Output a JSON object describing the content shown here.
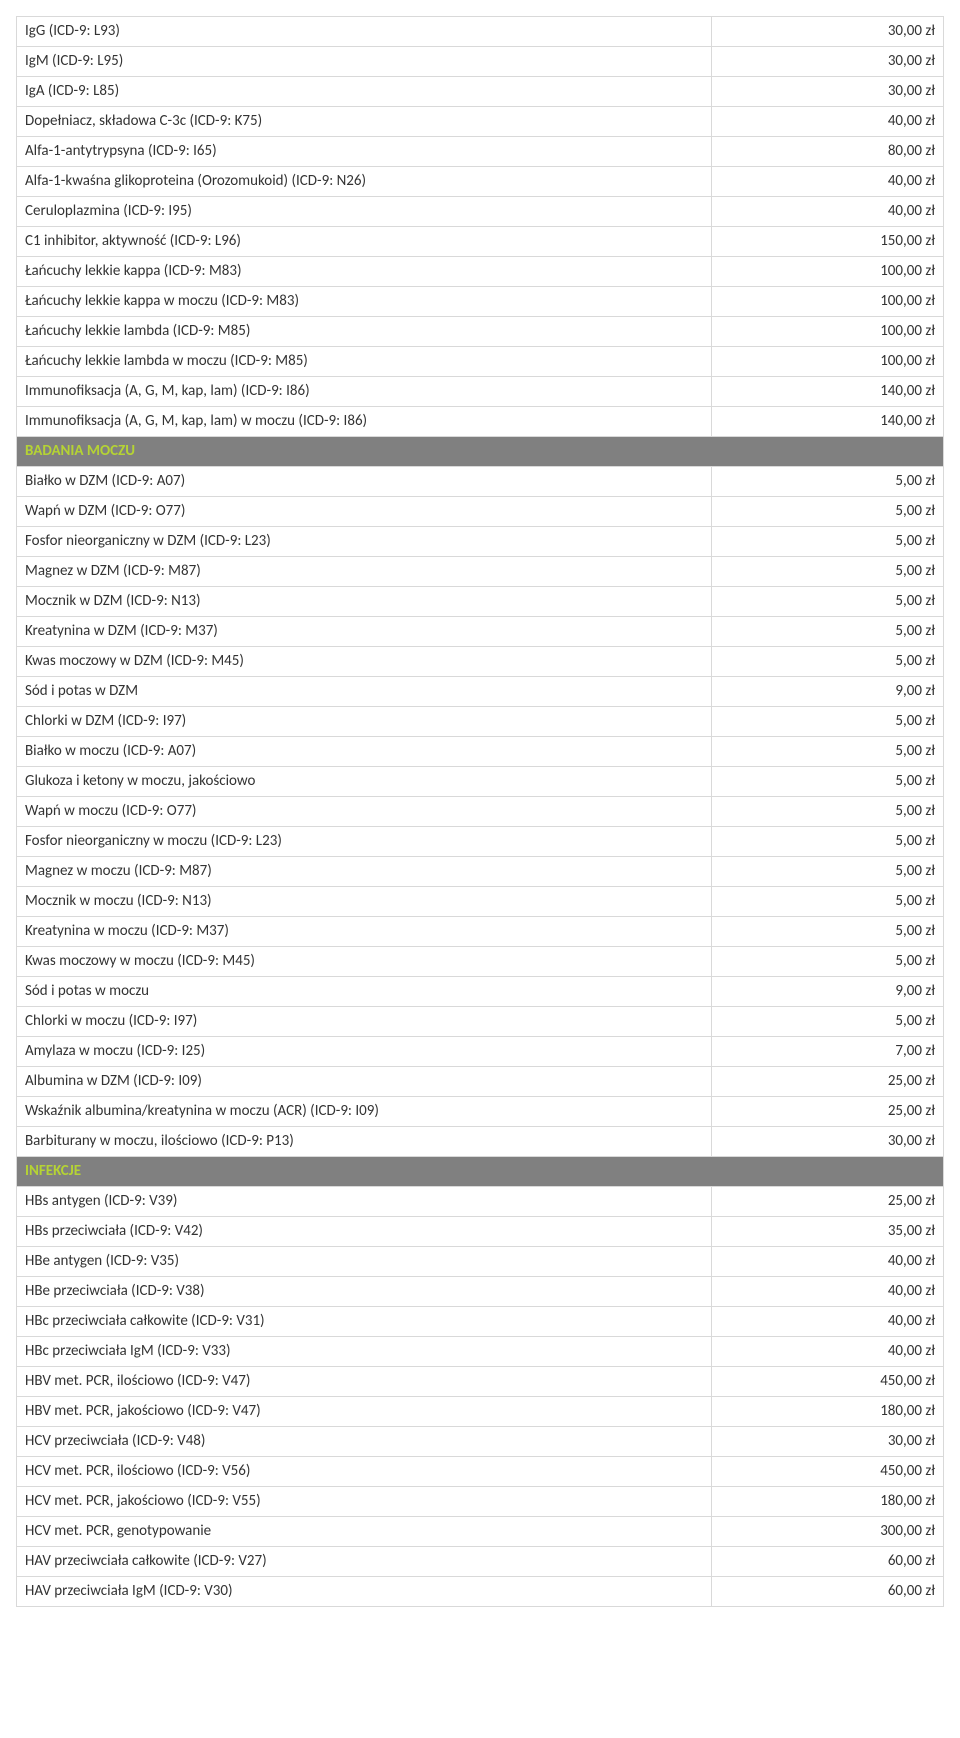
{
  "colors": {
    "border": "#d9d9d9",
    "section_bg": "#808080",
    "section_text": "#b5d334",
    "text": "#333333"
  },
  "columns": [
    "name",
    "price"
  ],
  "col_widths": [
    "75%",
    "25%"
  ],
  "rows": [
    {
      "type": "item",
      "name": "IgG (ICD-9: L93)",
      "price": "30,00 zł"
    },
    {
      "type": "item",
      "name": "IgM (ICD-9: L95)",
      "price": "30,00 zł"
    },
    {
      "type": "item",
      "name": "IgA (ICD-9: L85)",
      "price": "30,00 zł"
    },
    {
      "type": "item",
      "name": "Dopełniacz, składowa C-3c (ICD-9: K75)",
      "price": "40,00 zł"
    },
    {
      "type": "item",
      "name": "Alfa-1-antytrypsyna (ICD-9: I65)",
      "price": "80,00 zł"
    },
    {
      "type": "item",
      "name": "Alfa-1-kwaśna glikoproteina (Orozomukoid) (ICD-9: N26)",
      "price": "40,00 zł"
    },
    {
      "type": "item",
      "name": "Ceruloplazmina (ICD-9: I95)",
      "price": "40,00 zł"
    },
    {
      "type": "item",
      "name": "C1 inhibitor, aktywność (ICD-9: L96)",
      "price": "150,00 zł"
    },
    {
      "type": "item",
      "name": "Łańcuchy lekkie kappa (ICD-9: M83)",
      "price": "100,00 zł"
    },
    {
      "type": "item",
      "name": "Łańcuchy lekkie kappa w moczu (ICD-9: M83)",
      "price": "100,00 zł"
    },
    {
      "type": "item",
      "name": "Łańcuchy lekkie lambda (ICD-9: M85)",
      "price": "100,00 zł"
    },
    {
      "type": "item",
      "name": "Łańcuchy lekkie lambda w moczu (ICD-9: M85)",
      "price": "100,00 zł"
    },
    {
      "type": "item",
      "name": "Immunofiksacja (A, G, M, kap, lam) (ICD-9: I86)",
      "price": "140,00 zł"
    },
    {
      "type": "item",
      "name": "Immunofiksacja (A, G, M, kap, lam) w moczu (ICD-9: I86)",
      "price": "140,00 zł"
    },
    {
      "type": "section",
      "name": "BADANIA MOCZU"
    },
    {
      "type": "item",
      "name": "Białko w DZM (ICD-9: A07)",
      "price": "5,00 zł"
    },
    {
      "type": "item",
      "name": "Wapń w DZM (ICD-9: O77)",
      "price": "5,00 zł"
    },
    {
      "type": "item",
      "name": "Fosfor nieorganiczny w DZM (ICD-9: L23)",
      "price": "5,00 zł"
    },
    {
      "type": "item",
      "name": "Magnez w DZM (ICD-9: M87)",
      "price": "5,00 zł"
    },
    {
      "type": "item",
      "name": "Mocznik w DZM (ICD-9: N13)",
      "price": "5,00 zł"
    },
    {
      "type": "item",
      "name": "Kreatynina w DZM (ICD-9: M37)",
      "price": "5,00 zł"
    },
    {
      "type": "item",
      "name": "Kwas moczowy  w DZM (ICD-9: M45)",
      "price": "5,00 zł"
    },
    {
      "type": "item",
      "name": "Sód i potas w DZM",
      "price": "9,00 zł"
    },
    {
      "type": "item",
      "name": "Chlorki  w DZM (ICD-9: I97)",
      "price": "5,00 zł"
    },
    {
      "type": "item",
      "name": "Białko w moczu (ICD-9: A07)",
      "price": "5,00 zł"
    },
    {
      "type": "item",
      "name": "Glukoza i ketony w moczu, jakościowo",
      "price": "5,00 zł"
    },
    {
      "type": "item",
      "name": "Wapń w moczu (ICD-9: O77)",
      "price": "5,00 zł"
    },
    {
      "type": "item",
      "name": "Fosfor nieorganiczny w moczu (ICD-9: L23)",
      "price": "5,00 zł"
    },
    {
      "type": "item",
      "name": "Magnez w moczu (ICD-9: M87)",
      "price": "5,00 zł"
    },
    {
      "type": "item",
      "name": "Mocznik w moczu (ICD-9: N13)",
      "price": "5,00 zł"
    },
    {
      "type": "item",
      "name": "Kreatynina w moczu (ICD-9: M37)",
      "price": "5,00 zł"
    },
    {
      "type": "item",
      "name": "Kwas moczowy w moczu (ICD-9: M45)",
      "price": "5,00 zł"
    },
    {
      "type": "item",
      "name": "Sód i potas w moczu",
      "price": "9,00 zł"
    },
    {
      "type": "item",
      "name": "Chlorki w moczu (ICD-9: I97)",
      "price": "5,00 zł"
    },
    {
      "type": "item",
      "name": "Amylaza w moczu (ICD-9: I25)",
      "price": "7,00 zł"
    },
    {
      "type": "item",
      "name": "Albumina w DZM (ICD-9: I09)",
      "price": "25,00 zł"
    },
    {
      "type": "item",
      "name": "Wskaźnik albumina/kreatynina w moczu (ACR) (ICD-9: I09)",
      "price": "25,00 zł"
    },
    {
      "type": "item",
      "name": "Barbiturany w moczu, ilościowo (ICD-9: P13)",
      "price": "30,00 zł"
    },
    {
      "type": "section",
      "name": "INFEKCJE"
    },
    {
      "type": "item",
      "name": "HBs antygen (ICD-9: V39)",
      "price": "25,00 zł"
    },
    {
      "type": "item",
      "name": "HBs przeciwciała (ICD-9: V42)",
      "price": "35,00 zł"
    },
    {
      "type": "item",
      "name": "HBe antygen (ICD-9: V35)",
      "price": "40,00 zł"
    },
    {
      "type": "item",
      "name": "HBe przeciwciała (ICD-9: V38)",
      "price": "40,00 zł"
    },
    {
      "type": "item",
      "name": "HBc przeciwciała całkowite (ICD-9: V31)",
      "price": "40,00 zł"
    },
    {
      "type": "item",
      "name": "HBc przeciwciała IgM (ICD-9: V33)",
      "price": "40,00 zł"
    },
    {
      "type": "item",
      "name": "HBV met. PCR, ilościowo (ICD-9: V47)",
      "price": "450,00 zł"
    },
    {
      "type": "item",
      "name": "HBV met. PCR, jakościowo (ICD-9: V47)",
      "price": "180,00 zł"
    },
    {
      "type": "item",
      "name": "HCV przeciwciała (ICD-9: V48)",
      "price": "30,00 zł"
    },
    {
      "type": "item",
      "name": "HCV met. PCR, ilościowo (ICD-9: V56)",
      "price": "450,00 zł"
    },
    {
      "type": "item",
      "name": "HCV met. PCR, jakościowo (ICD-9: V55)",
      "price": "180,00 zł"
    },
    {
      "type": "item",
      "name": "HCV met. PCR, genotypowanie",
      "price": "300,00 zł"
    },
    {
      "type": "item",
      "name": "HAV przeciwciała całkowite (ICD-9: V27)",
      "price": "60,00 zł"
    },
    {
      "type": "item",
      "name": "HAV przeciwciała IgM (ICD-9: V30)",
      "price": "60,00 zł"
    }
  ]
}
